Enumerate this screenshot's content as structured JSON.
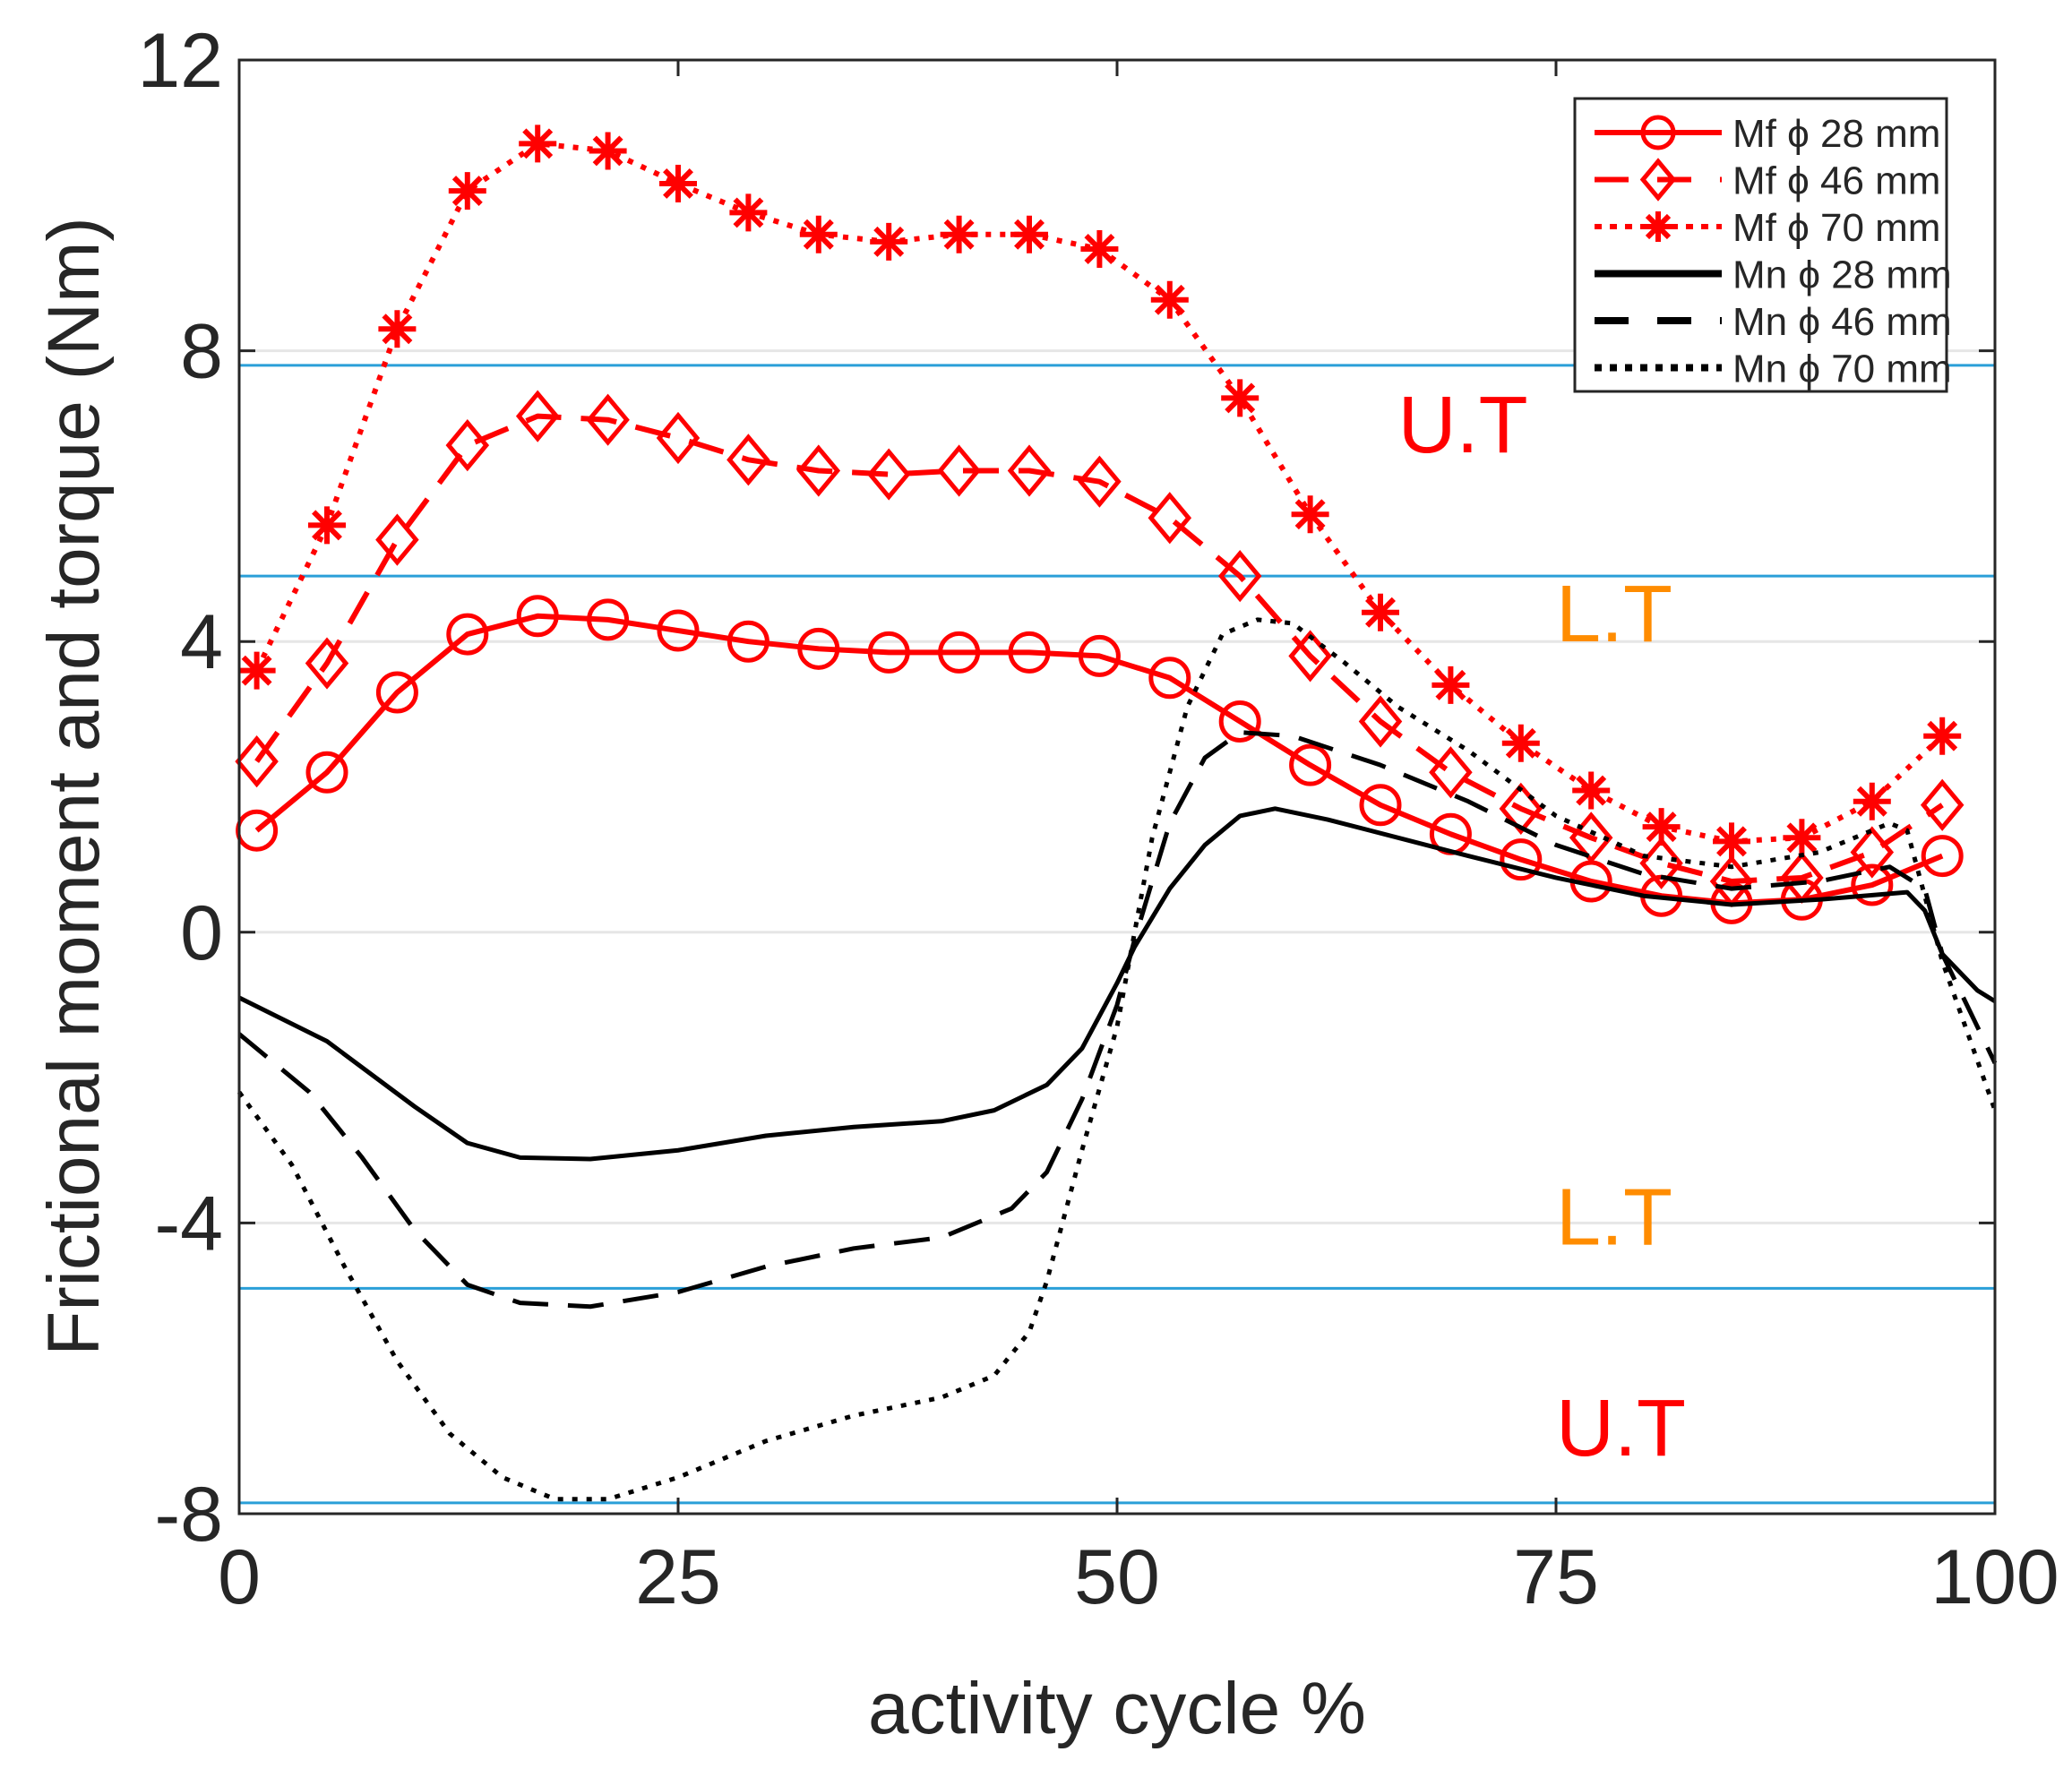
{
  "chart_data": {
    "type": "line",
    "xlabel": "activity cycle %",
    "ylabel": "Frictional moment and torque (Nm)",
    "xlim": [
      0,
      100
    ],
    "ylim": [
      -8,
      12
    ],
    "xticks": [
      0,
      25,
      50,
      75,
      100
    ],
    "yticks": [
      12,
      8,
      4,
      0,
      -4,
      -8
    ],
    "grid": "horizontal",
    "legend_position": "top-right",
    "colors": {
      "mf": "#ff0000",
      "mn": "#000000",
      "threshold": "#2a9fd8",
      "ut": "#ff0000",
      "lt": "#ff8c00",
      "grid": "#e6e6e6"
    },
    "marker_x": [
      1,
      5,
      9,
      13,
      17,
      21,
      25,
      29,
      33,
      37,
      41,
      45,
      49,
      53,
      57,
      61,
      65,
      69,
      73,
      77,
      81,
      85,
      89,
      93,
      97
    ],
    "series": [
      {
        "name": "Mf ϕ 28 mm",
        "color": "#ff0000",
        "dash": "solid",
        "marker": "circle",
        "values": [
          1.4,
          2.2,
          3.3,
          4.1,
          4.35,
          4.3,
          4.15,
          4.0,
          3.9,
          3.85,
          3.85,
          3.85,
          3.8,
          3.5,
          2.9,
          2.3,
          1.75,
          1.35,
          1.0,
          0.7,
          0.5,
          0.4,
          0.45,
          0.65,
          1.05
        ]
      },
      {
        "name": "Mf ϕ 46 mm",
        "color": "#ff0000",
        "dash": "dashed",
        "marker": "diamond",
        "values": [
          2.35,
          3.7,
          5.4,
          6.7,
          7.1,
          7.05,
          6.8,
          6.5,
          6.35,
          6.3,
          6.35,
          6.35,
          6.2,
          5.7,
          4.9,
          3.8,
          2.9,
          2.2,
          1.7,
          1.3,
          0.95,
          0.7,
          0.75,
          1.1,
          1.75
        ]
      },
      {
        "name": "Mf ϕ 70 mm",
        "color": "#ff0000",
        "dash": "dotted",
        "marker": "asterisk",
        "values": [
          3.6,
          5.6,
          8.3,
          10.2,
          10.85,
          10.75,
          10.3,
          9.9,
          9.6,
          9.5,
          9.6,
          9.6,
          9.4,
          8.7,
          7.35,
          5.75,
          4.4,
          3.4,
          2.6,
          1.95,
          1.45,
          1.25,
          1.3,
          1.8,
          2.7
        ]
      },
      {
        "name": "Mn ϕ 28 mm",
        "color": "#000000",
        "dash": "solid",
        "marker": "none",
        "points": [
          [
            0,
            -0.9
          ],
          [
            5,
            -1.5
          ],
          [
            10,
            -2.4
          ],
          [
            13,
            -2.9
          ],
          [
            16,
            -3.1
          ],
          [
            20,
            -3.12
          ],
          [
            25,
            -3.0
          ],
          [
            30,
            -2.8
          ],
          [
            35,
            -2.68
          ],
          [
            40,
            -2.6
          ],
          [
            43,
            -2.45
          ],
          [
            46,
            -2.1
          ],
          [
            48,
            -1.6
          ],
          [
            50,
            -0.7
          ],
          [
            51,
            -0.2
          ],
          [
            53,
            0.6
          ],
          [
            55,
            1.2
          ],
          [
            57,
            1.6
          ],
          [
            59,
            1.7
          ],
          [
            62,
            1.55
          ],
          [
            70,
            1.05
          ],
          [
            75,
            0.75
          ],
          [
            80,
            0.5
          ],
          [
            85,
            0.38
          ],
          [
            90,
            0.45
          ],
          [
            95,
            0.55
          ],
          [
            96,
            0.3
          ],
          [
            97,
            -0.3
          ],
          [
            99,
            -0.8
          ],
          [
            100,
            -0.95
          ]
        ]
      },
      {
        "name": "Mn ϕ 46 mm",
        "color": "#000000",
        "dash": "dashed",
        "marker": "none",
        "points": [
          [
            0,
            -1.4
          ],
          [
            4,
            -2.2
          ],
          [
            7,
            -3.1
          ],
          [
            10,
            -4.1
          ],
          [
            13,
            -4.85
          ],
          [
            16,
            -5.1
          ],
          [
            20,
            -5.15
          ],
          [
            25,
            -4.95
          ],
          [
            30,
            -4.6
          ],
          [
            35,
            -4.35
          ],
          [
            40,
            -4.2
          ],
          [
            44,
            -3.8
          ],
          [
            46,
            -3.3
          ],
          [
            48,
            -2.3
          ],
          [
            50,
            -1.0
          ],
          [
            51,
            -0.1
          ],
          [
            53,
            1.5
          ],
          [
            55,
            2.4
          ],
          [
            57,
            2.75
          ],
          [
            60,
            2.7
          ],
          [
            65,
            2.3
          ],
          [
            70,
            1.8
          ],
          [
            75,
            1.2
          ],
          [
            80,
            0.8
          ],
          [
            85,
            0.6
          ],
          [
            90,
            0.7
          ],
          [
            94,
            0.9
          ],
          [
            96,
            0.6
          ],
          [
            97,
            -0.3
          ],
          [
            100,
            -1.8
          ]
        ]
      },
      {
        "name": "Mn ϕ 70 mm",
        "color": "#000000",
        "dash": "dotted",
        "marker": "none",
        "points": [
          [
            0,
            -2.2
          ],
          [
            3,
            -3.2
          ],
          [
            6,
            -4.6
          ],
          [
            9,
            -5.9
          ],
          [
            12,
            -6.9
          ],
          [
            15,
            -7.5
          ],
          [
            18,
            -7.8
          ],
          [
            21,
            -7.8
          ],
          [
            25,
            -7.5
          ],
          [
            30,
            -7.0
          ],
          [
            35,
            -6.65
          ],
          [
            40,
            -6.4
          ],
          [
            43,
            -6.1
          ],
          [
            45,
            -5.5
          ],
          [
            46,
            -4.8
          ],
          [
            48,
            -3.0
          ],
          [
            50,
            -1.3
          ],
          [
            51,
            0
          ],
          [
            52,
            1.3
          ],
          [
            54,
            3.1
          ],
          [
            56,
            4.1
          ],
          [
            58,
            4.3
          ],
          [
            60,
            4.25
          ],
          [
            63,
            3.7
          ],
          [
            66,
            3.1
          ],
          [
            70,
            2.5
          ],
          [
            75,
            1.6
          ],
          [
            80,
            1.05
          ],
          [
            85,
            0.9
          ],
          [
            90,
            1.1
          ],
          [
            94,
            1.5
          ],
          [
            95,
            1.4
          ],
          [
            96,
            0.5
          ],
          [
            97,
            -0.4
          ],
          [
            100,
            -2.45
          ]
        ]
      }
    ],
    "thresholds": [
      7.8,
      4.9,
      -4.9,
      -7.85
    ],
    "annotations": [
      {
        "text": "U.T",
        "x": 66,
        "y": 6.6,
        "color": "#ff0000"
      },
      {
        "text": "L.T",
        "x": 75,
        "y": 4.0,
        "color": "#ff8c00"
      },
      {
        "text": "L.T",
        "x": 75,
        "y": -4.3,
        "color": "#ff8c00"
      },
      {
        "text": "U.T",
        "x": 75,
        "y": -7.2,
        "color": "#ff0000"
      }
    ]
  }
}
